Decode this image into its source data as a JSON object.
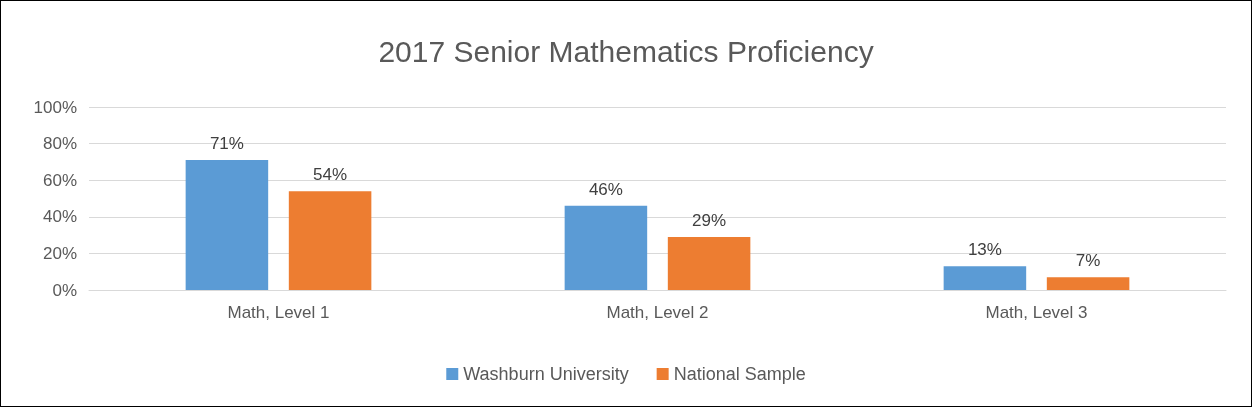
{
  "chart_data": {
    "type": "bar",
    "title": "2017 Senior Mathematics Proficiency",
    "categories": [
      "Math, Level 1",
      "Math, Level 2",
      "Math, Level 3"
    ],
    "series": [
      {
        "name": "Washburn University",
        "color": "#5b9bd5",
        "values": [
          71,
          46,
          13
        ],
        "value_labels": [
          "71%",
          "46%",
          "13%"
        ]
      },
      {
        "name": "National Sample",
        "color": "#ed7d31",
        "values": [
          54,
          29,
          7
        ],
        "value_labels": [
          "54%",
          "29%",
          "7%"
        ]
      }
    ],
    "ylim": [
      0,
      100
    ],
    "yticks": [
      {
        "value": 0,
        "label": "0%"
      },
      {
        "value": 20,
        "label": "20%"
      },
      {
        "value": 40,
        "label": "40%"
      },
      {
        "value": 60,
        "label": "60%"
      },
      {
        "value": 80,
        "label": "80%"
      },
      {
        "value": 100,
        "label": "100%"
      }
    ],
    "grid": "y",
    "legend": "bottom"
  }
}
